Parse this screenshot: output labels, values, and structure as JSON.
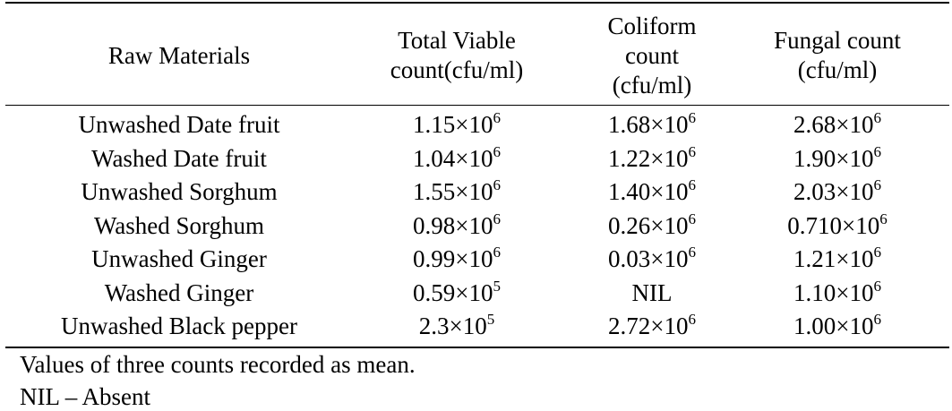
{
  "table": {
    "headers": [
      "Raw Materials",
      "Total Viable count(cfu/ml)",
      "Coliform count (cfu/ml)",
      "Fungal count (cfu/ml)"
    ],
    "rows": [
      {
        "material": "Unwashed Date fruit",
        "tvc": {
          "m": "1.15×10",
          "e": "6"
        },
        "coliform": {
          "m": "1.68×10",
          "e": "6"
        },
        "fungal": {
          "m": "2.68×10",
          "e": "6"
        }
      },
      {
        "material": "Washed Date fruit",
        "tvc": {
          "m": "1.04×10",
          "e": "6"
        },
        "coliform": {
          "m": "1.22×10",
          "e": "6"
        },
        "fungal": {
          "m": "1.90×10",
          "e": "6"
        }
      },
      {
        "material": "Unwashed Sorghum",
        "tvc": {
          "m": "1.55×10",
          "e": "6"
        },
        "coliform": {
          "m": "1.40×10",
          "e": "6"
        },
        "fungal": {
          "m": "2.03×10",
          "e": "6"
        }
      },
      {
        "material": "Washed Sorghum",
        "tvc": {
          "m": "0.98×10",
          "e": "6"
        },
        "coliform": {
          "m": "0.26×10",
          "e": "6"
        },
        "fungal": {
          "m": "0.710×10",
          "e": "6"
        }
      },
      {
        "material": "Unwashed Ginger",
        "tvc": {
          "m": "0.99×10",
          "e": "6"
        },
        "coliform": {
          "m": "0.03×10",
          "e": "6"
        },
        "fungal": {
          "m": "1.21×10",
          "e": "6"
        }
      },
      {
        "material": "Washed Ginger",
        "tvc": {
          "m": "0.59×10",
          "e": "5"
        },
        "coliform": {
          "m": "NIL",
          "e": ""
        },
        "fungal": {
          "m": "1.10×10",
          "e": "6"
        }
      },
      {
        "material": "Unwashed Black pepper",
        "tvc": {
          "m": "2.3×10",
          "e": "5"
        },
        "coliform": {
          "m": "2.72×10",
          "e": "6"
        },
        "fungal": {
          "m": "1.00×10",
          "e": "6"
        }
      }
    ]
  },
  "notes": [
    "Values of three counts recorded as mean.",
    "NIL – Absent"
  ]
}
